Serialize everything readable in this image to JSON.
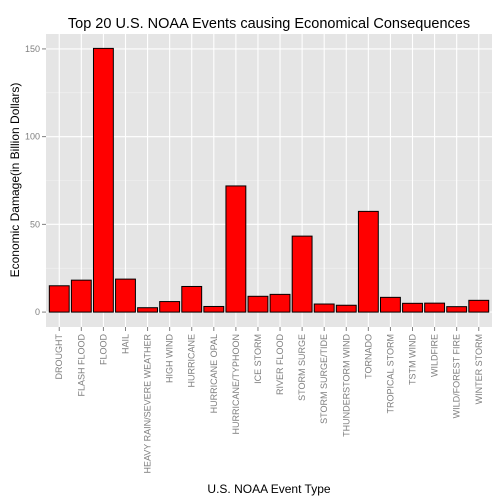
{
  "chart_data": {
    "type": "bar",
    "title": "Top 20 U.S. NOAA Events causing Economical Consequences",
    "xlabel": "U.S. NOAA Event Type",
    "ylabel": "Economic Damage(in Billion Dollars)",
    "categories": [
      "DROUGHT",
      "FLASH FLOOD",
      "FLOOD",
      "HAIL",
      "HEAVY RAIN/SEVERE WEATHER",
      "HIGH WIND",
      "HURRICANE",
      "HURRICANE OPAL",
      "HURRICANE/TYPHOON",
      "ICE STORM",
      "RIVER FLOOD",
      "STORM SURGE",
      "STORM SURGE/TIDE",
      "THUNDERSTORM WIND",
      "TORNADO",
      "TROPICAL STORM",
      "TSTM WIND",
      "WILDFIRE",
      "WILD/FOREST FIRE",
      "WINTER STORM"
    ],
    "values": [
      15.0,
      18.2,
      150.3,
      18.8,
      2.5,
      6.0,
      14.6,
      3.2,
      71.9,
      9.0,
      10.1,
      43.3,
      4.6,
      3.9,
      57.4,
      8.4,
      5.0,
      5.1,
      3.1,
      6.7
    ],
    "ylim": [
      -8.5,
      158.5
    ],
    "yticks": [
      0,
      50,
      100,
      150
    ],
    "grid": true,
    "legend": "none",
    "colors": {
      "bar_fill": "#ff0000",
      "bar_stroke": "#000000",
      "panel_bg": "#e5e5e5",
      "grid_major": "#ffffff",
      "grid_minor": "#f2f2f2",
      "tick_text": "#7f7f7f"
    }
  }
}
